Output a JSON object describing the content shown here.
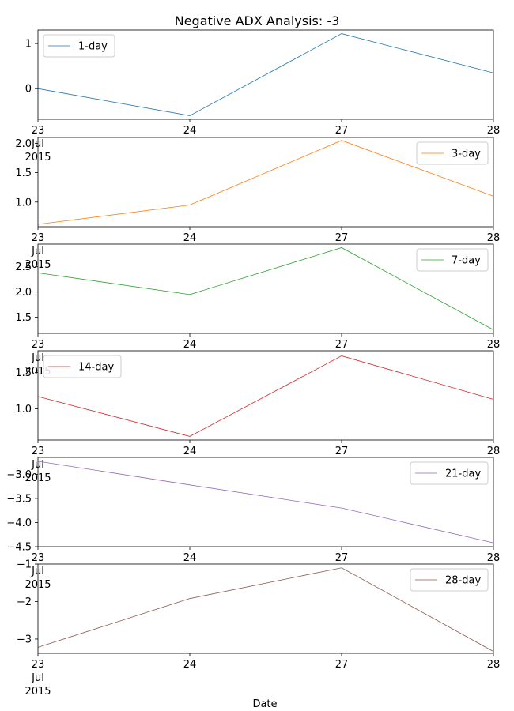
{
  "title": "Negative ADX Analysis: -3",
  "xlabel": "Date",
  "x_tick_labels": [
    "23",
    "24",
    "27",
    "28"
  ],
  "x_month_label": "Jul",
  "x_year_label": "2015",
  "colors": {
    "1-day": "#1f77b4",
    "3-day": "#ff7f0e",
    "7-day": "#2ca02c",
    "14-day": "#d62728",
    "21-day": "#9467bd",
    "28-day": "#8c564b"
  },
  "chart_data": [
    {
      "type": "line",
      "x": [
        "2015-07-23",
        "2015-07-24",
        "2015-07-27",
        "2015-07-28"
      ],
      "series": [
        {
          "name": "1-day",
          "values": [
            0.0,
            -0.6,
            1.22,
            0.35
          ]
        }
      ],
      "ylim": [
        -0.68,
        1.3
      ],
      "yticks": [
        0,
        1
      ],
      "legend": "upper-left"
    },
    {
      "type": "line",
      "x": [
        "2015-07-23",
        "2015-07-24",
        "2015-07-27",
        "2015-07-28"
      ],
      "series": [
        {
          "name": "3-day",
          "values": [
            0.62,
            0.95,
            2.05,
            1.1
          ]
        }
      ],
      "ylim": [
        0.58,
        2.1
      ],
      "yticks": [
        1.0,
        1.5,
        2.0
      ],
      "legend": "upper-right"
    },
    {
      "type": "line",
      "x": [
        "2015-07-23",
        "2015-07-24",
        "2015-07-27",
        "2015-07-28"
      ],
      "series": [
        {
          "name": "7-day",
          "values": [
            2.38,
            1.95,
            2.88,
            1.25
          ]
        }
      ],
      "ylim": [
        1.18,
        2.95
      ],
      "yticks": [
        1.5,
        2.0,
        2.5
      ],
      "legend": "upper-right"
    },
    {
      "type": "line",
      "x": [
        "2015-07-23",
        "2015-07-24",
        "2015-07-27",
        "2015-07-28"
      ],
      "series": [
        {
          "name": "14-day",
          "values": [
            1.17,
            0.62,
            1.73,
            1.13
          ]
        }
      ],
      "ylim": [
        0.57,
        1.8
      ],
      "yticks": [
        1.0,
        1.5
      ],
      "legend": "upper-left"
    },
    {
      "type": "line",
      "x": [
        "2015-07-23",
        "2015-07-24",
        "2015-07-27",
        "2015-07-28"
      ],
      "series": [
        {
          "name": "21-day",
          "values": [
            -2.73,
            -3.22,
            -3.7,
            -4.42
          ]
        }
      ],
      "ylim": [
        -4.5,
        -2.65
      ],
      "yticks": [
        -4.5,
        -4.0,
        -3.5,
        -3.0
      ],
      "legend": "upper-right"
    },
    {
      "type": "line",
      "x": [
        "2015-07-23",
        "2015-07-24",
        "2015-07-27",
        "2015-07-28"
      ],
      "series": [
        {
          "name": "28-day",
          "values": [
            -3.22,
            -1.92,
            -1.1,
            -3.33
          ]
        }
      ],
      "ylim": [
        -3.38,
        -1.0
      ],
      "yticks": [
        -3,
        -2,
        -1
      ],
      "legend": "upper-right"
    }
  ]
}
